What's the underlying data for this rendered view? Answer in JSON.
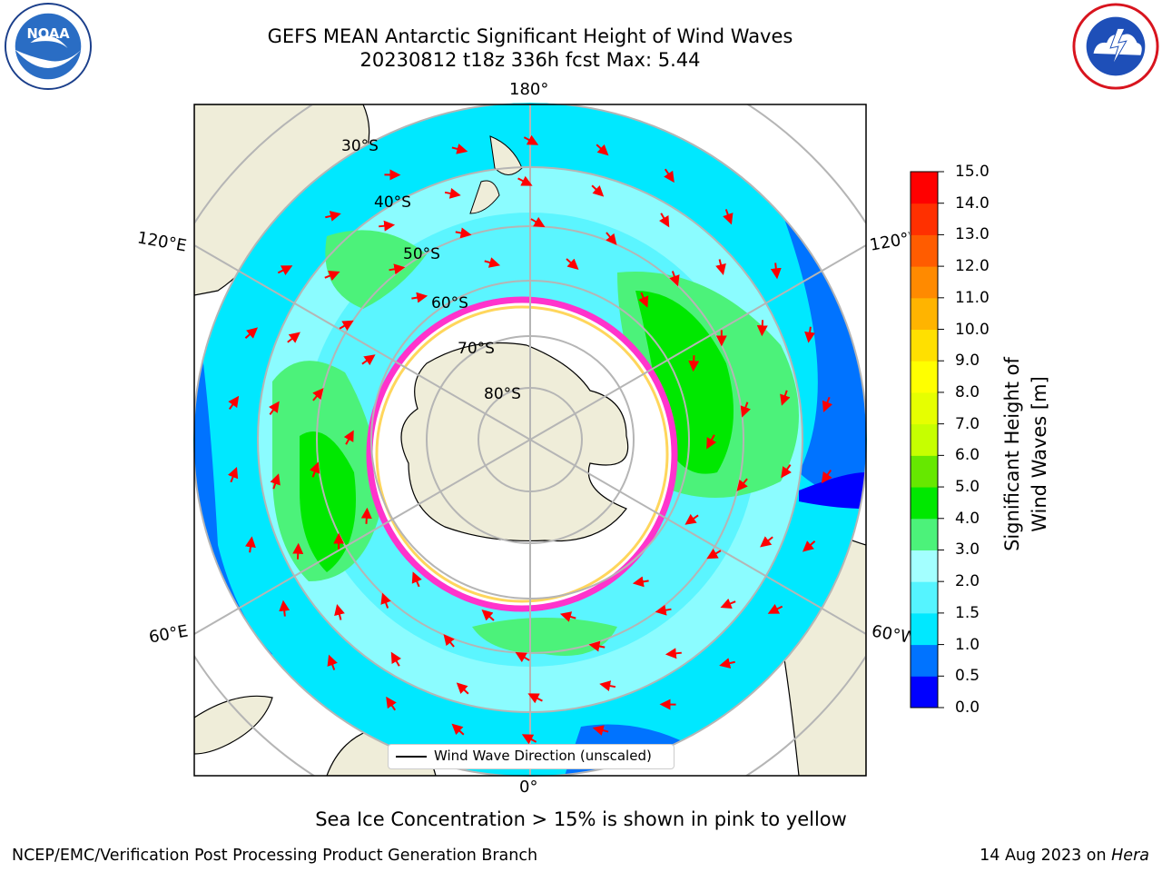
{
  "header": {
    "title_line1": "GEFS MEAN Antarctic Significant Height of Wind Waves",
    "title_line2": "20230812 t18z 336h fcst   Max: 5.44"
  },
  "logos": {
    "left": {
      "text": "NOAA",
      "ring_text": "NATIONAL OCEANIC AND ATMOSPHERIC ADMINISTRATION · U.S. DEPARTMENT OF COMMERCE"
    },
    "right": {
      "ring_text": "NATIONAL WEATHER SERVICE"
    }
  },
  "map": {
    "projection": "south polar stereographic",
    "longitude_labels": {
      "top": "180°",
      "bottom": "0°",
      "upper_left": "120°E",
      "lower_left": "60°E",
      "upper_right": "120°W",
      "lower_right": "60°W"
    },
    "latitude_labels": [
      "30°S",
      "40°S",
      "50°S",
      "60°S",
      "70°S",
      "80°S"
    ],
    "legend": "Wind Wave Direction (unscaled)",
    "colors": {
      "land": "#efedd9",
      "ice_edge": "#ff33cc",
      "arrows": "#ff0000",
      "grid": "#b5b5b5"
    }
  },
  "colorbar": {
    "label": "Significant Height of Wind Waves [m]",
    "ticks": [
      "0.0",
      "0.5",
      "1.0",
      "1.5",
      "2.0",
      "3.0",
      "4.0",
      "5.0",
      "6.0",
      "7.0",
      "8.0",
      "9.0",
      "10.0",
      "11.0",
      "12.0",
      "13.0",
      "14.0",
      "15.0"
    ],
    "colors": [
      "#0000ff",
      "#0073ff",
      "#00e8ff",
      "#55f4ff",
      "#a3ffff",
      "#4cf27a",
      "#00e800",
      "#66e800",
      "#c6ff00",
      "#e6ff00",
      "#ffff00",
      "#ffe000",
      "#ffb400",
      "#ff8a00",
      "#ff5c00",
      "#ff3000",
      "#ff0000"
    ]
  },
  "footer": {
    "sea_ice_note": "Sea Ice Concentration > 15% is shown in pink to yellow",
    "credit": "NCEP/EMC/Verification Post Processing Product Generation Branch",
    "date": "14 Aug 2023 on ",
    "machine": "Hera"
  }
}
